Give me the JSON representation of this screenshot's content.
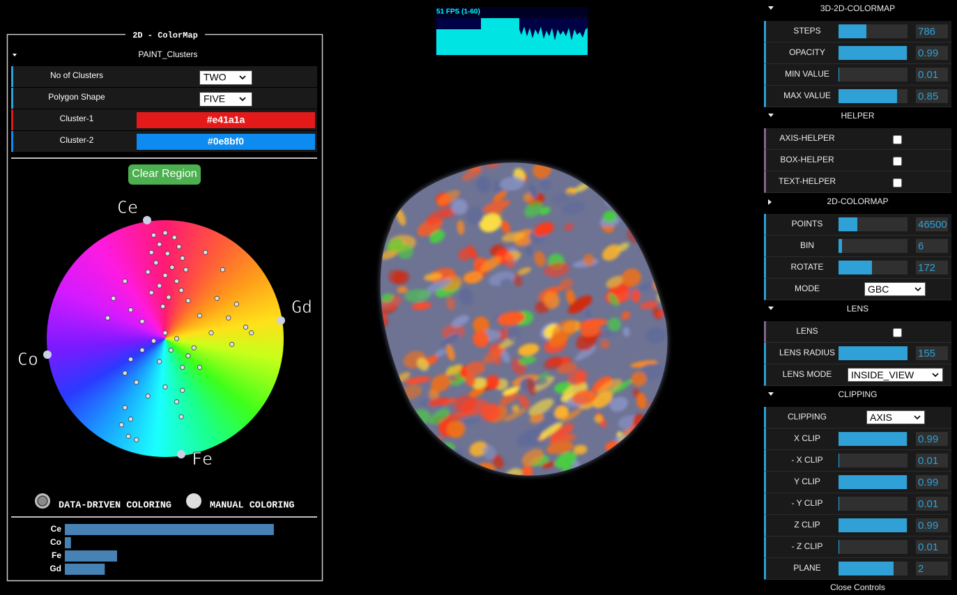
{
  "stats": {
    "fps": "51 FPS (1-60)"
  },
  "left_panel": {
    "title": "2D - ColorMap",
    "folder": "PAINT_Clusters",
    "rows": [
      {
        "label": "No of Clusters",
        "value": "TWO"
      },
      {
        "label": "Polygon Shape",
        "value": "FIVE"
      },
      {
        "label": "Cluster-1",
        "value": "#e41a1a"
      },
      {
        "label": "Cluster-2",
        "value": "#0e8bf0"
      }
    ],
    "button": "Clear Region",
    "wheel": {
      "labels": [
        "Ce",
        "Gd",
        "Fe",
        "Co"
      ],
      "points": [
        [
          -0.1,
          0.9
        ],
        [
          0.0,
          0.92
        ],
        [
          0.08,
          0.88
        ],
        [
          -0.05,
          0.82
        ],
        [
          0.12,
          0.8
        ],
        [
          -0.12,
          0.75
        ],
        [
          0.02,
          0.74
        ],
        [
          0.15,
          0.7
        ],
        [
          -0.08,
          0.66
        ],
        [
          0.06,
          0.62
        ],
        [
          0.18,
          0.6
        ],
        [
          -0.15,
          0.58
        ],
        [
          0.0,
          0.55
        ],
        [
          0.1,
          0.5
        ],
        [
          -0.05,
          0.46
        ],
        [
          0.14,
          0.42
        ],
        [
          -0.12,
          0.4
        ],
        [
          0.03,
          0.36
        ],
        [
          0.2,
          0.33
        ],
        [
          -0.02,
          0.28
        ],
        [
          0.35,
          0.75
        ],
        [
          0.5,
          0.6
        ],
        [
          0.45,
          0.35
        ],
        [
          0.62,
          0.3
        ],
        [
          0.7,
          0.1
        ],
        [
          0.75,
          0.05
        ],
        [
          0.55,
          0.18
        ],
        [
          0.3,
          0.2
        ],
        [
          0.4,
          0.05
        ],
        [
          0.58,
          -0.05
        ],
        [
          0.25,
          -0.08
        ],
        [
          -0.35,
          0.5
        ],
        [
          -0.45,
          0.35
        ],
        [
          -0.3,
          0.25
        ],
        [
          -0.5,
          0.18
        ],
        [
          -0.2,
          0.15
        ],
        [
          0.0,
          0.05
        ],
        [
          0.1,
          0.0
        ],
        [
          -0.1,
          -0.02
        ],
        [
          0.05,
          -0.1
        ],
        [
          -0.2,
          -0.1
        ],
        [
          0.2,
          -0.15
        ],
        [
          -0.05,
          -0.2
        ],
        [
          0.15,
          -0.25
        ],
        [
          -0.3,
          -0.18
        ],
        [
          0.3,
          -0.25
        ],
        [
          -0.35,
          -0.3
        ],
        [
          -0.25,
          -0.38
        ],
        [
          0.0,
          -0.42
        ],
        [
          -0.15,
          -0.5
        ],
        [
          0.15,
          -0.45
        ],
        [
          -0.35,
          -0.6
        ],
        [
          -0.3,
          -0.7
        ],
        [
          -0.38,
          -0.75
        ],
        [
          -0.32,
          -0.85
        ],
        [
          -0.25,
          -0.88
        ],
        [
          0.1,
          -0.55
        ],
        [
          0.14,
          -0.68
        ]
      ]
    },
    "radios": [
      {
        "label": "DATA-DRIVEN COLORING",
        "selected": true
      },
      {
        "label": "MANUAL COLORING",
        "selected": false
      }
    ],
    "composition": {
      "categories": [
        "Ce",
        "Co",
        "Fe",
        "Gd"
      ],
      "values": [
        0.68,
        0.02,
        0.17,
        0.13
      ]
    }
  },
  "controls": {
    "sections": [
      {
        "title": "3D-2D-COLORMAP",
        "rows": [
          {
            "label": "STEPS",
            "value": 786
          },
          {
            "label": "OPACITY",
            "value": 0.99
          },
          {
            "label": "MIN VALUE",
            "value": 0.01
          },
          {
            "label": "MAX VALUE",
            "value": 0.85
          }
        ]
      },
      {
        "title": "HELPER",
        "rows": [
          {
            "label": "AXIS-HELPER",
            "checked": false
          },
          {
            "label": "BOX-HELPER",
            "checked": false
          },
          {
            "label": "TEXT-HELPER",
            "checked": false
          }
        ]
      },
      {
        "title": "2D-COLORMAP",
        "rows": [
          {
            "label": "POINTS",
            "value": 46500
          },
          {
            "label": "BIN",
            "value": 6
          },
          {
            "label": "ROTATE",
            "value": 172
          },
          {
            "label": "MODE",
            "value": "GBC"
          }
        ]
      },
      {
        "title": "LENS",
        "rows": [
          {
            "label": "LENS",
            "checked": false
          },
          {
            "label": "LENS RADIUS",
            "value": 155
          },
          {
            "label": "LENS MODE",
            "value": "INSIDE_VIEW"
          }
        ]
      },
      {
        "title": "CLIPPING",
        "rows": [
          {
            "label": "CLIPPING",
            "value": "AXIS"
          },
          {
            "label": "X CLIP",
            "value": 0.99
          },
          {
            "label": "- X CLIP",
            "value": 0.01
          },
          {
            "label": "Y CLIP",
            "value": 0.99
          },
          {
            "label": "- Y CLIP",
            "value": 0.01
          },
          {
            "label": "Z CLIP",
            "value": 0.99
          },
          {
            "label": "- Z CLIP",
            "value": 0.01
          },
          {
            "label": "PLANE",
            "value": 2
          }
        ]
      }
    ],
    "close": "Close Controls"
  }
}
